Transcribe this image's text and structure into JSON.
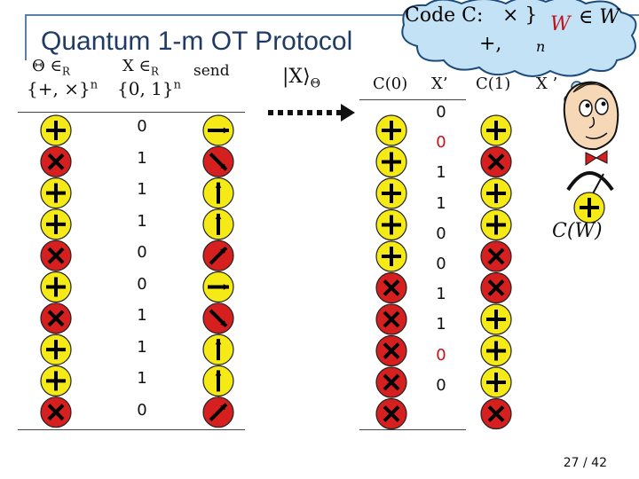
{
  "slide": {
    "title": "Quantum 1-m OT Protocol",
    "page_number": "27 / 42"
  },
  "headers": {
    "theta": "Θ ∈",
    "theta_sub": "R",
    "theta_set": "{+, ×}",
    "theta_exp": "n",
    "x": "X ∈",
    "x_sub": "R",
    "x_set": "{0, 1}",
    "x_exp": "n",
    "send": "send",
    "ket": "|X⟩",
    "ket_sub": "Θ",
    "c0": "C(0)",
    "xprime": "X’",
    "c1": "C(1)",
    "xprime2": "X ’"
  },
  "cloud": {
    "code_text": "Code C:",
    "set_text": "× }",
    "w_text": "W",
    "belongs_text": "∈ W",
    "plus_text": "+,",
    "n_text": "n"
  },
  "measure_label": "C(W)",
  "colors": {
    "title": "#1f3b63",
    "circle_yellow": "#f5ea16",
    "circle_red": "#d61f1f",
    "highlight_bit": "#c0121a"
  },
  "alice": {
    "bases": [
      "+",
      "x",
      "+",
      "+",
      "x",
      "+",
      "x",
      "+",
      "+",
      "x"
    ],
    "bits": [
      "0",
      "1",
      "1",
      "1",
      "0",
      "0",
      "1",
      "1",
      "1",
      "0"
    ],
    "states": [
      "h",
      "bs",
      "v",
      "v",
      "fs",
      "h",
      "bs",
      "v",
      "v",
      "fs"
    ]
  },
  "bob": {
    "c0": [
      "+",
      "+",
      "+",
      "+",
      "+",
      "x",
      "x",
      "x",
      "x",
      "x"
    ],
    "xprime": [
      "0",
      "0",
      "1",
      "1",
      "0",
      "0",
      "1",
      "1",
      "0",
      "0"
    ],
    "xprime_red": [
      false,
      true,
      false,
      false,
      false,
      false,
      false,
      false,
      true,
      false
    ],
    "c1": [
      "+",
      "x",
      "+",
      "+",
      "x",
      "x",
      "+",
      "+",
      "+",
      "x"
    ]
  }
}
